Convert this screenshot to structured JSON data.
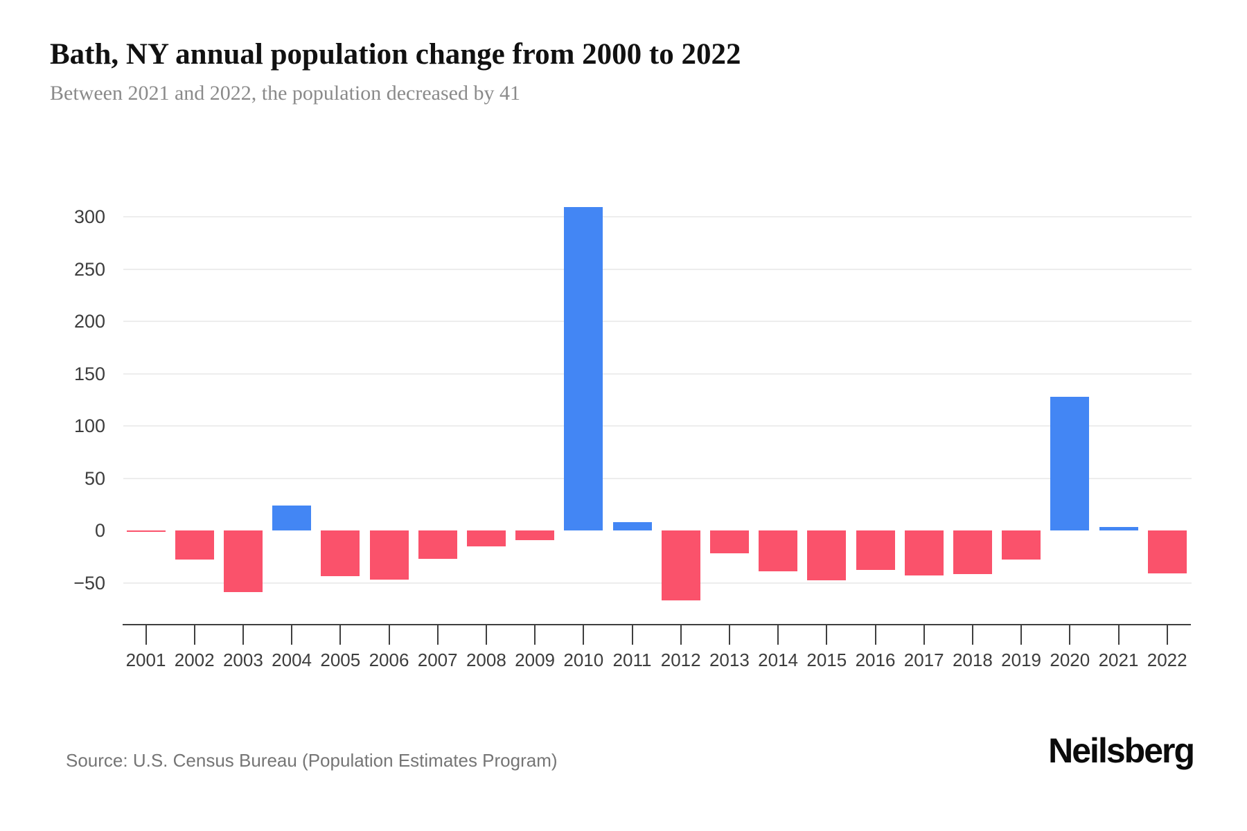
{
  "header": {
    "title": "Bath, NY annual population change from 2000 to 2022",
    "subtitle": "Between 2021 and 2022, the population decreased by 41"
  },
  "footer": {
    "source": "Source: U.S. Census Bureau (Population Estimates Program)",
    "logo": "Neilsberg"
  },
  "colors": {
    "positive": "#4386F4",
    "negative": "#FA526B",
    "gridline": "#ededed",
    "axis": "#3f3f3f",
    "tick_text": "#3d3d3d"
  },
  "chart_data": {
    "type": "bar",
    "title": "Bath, NY annual population change from 2000 to 2022",
    "xlabel": "",
    "ylabel": "",
    "categories": [
      "2001",
      "2002",
      "2003",
      "2004",
      "2005",
      "2006",
      "2007",
      "2008",
      "2009",
      "2010",
      "2011",
      "2012",
      "2013",
      "2014",
      "2015",
      "2016",
      "2017",
      "2018",
      "2019",
      "2020",
      "2021",
      "2022"
    ],
    "values": [
      -1,
      -28,
      -59,
      24,
      -44,
      -47,
      -27,
      -15,
      -9,
      309,
      8,
      -67,
      -22,
      -39,
      -48,
      -38,
      -43,
      -42,
      -28,
      128,
      3,
      -41
    ],
    "ylim": [
      -90,
      348
    ],
    "yticks": [
      300,
      250,
      200,
      150,
      100,
      50,
      0,
      -50
    ],
    "grid": true,
    "legend": "none",
    "positive_color": "#4386F4",
    "negative_color": "#FA526B"
  }
}
